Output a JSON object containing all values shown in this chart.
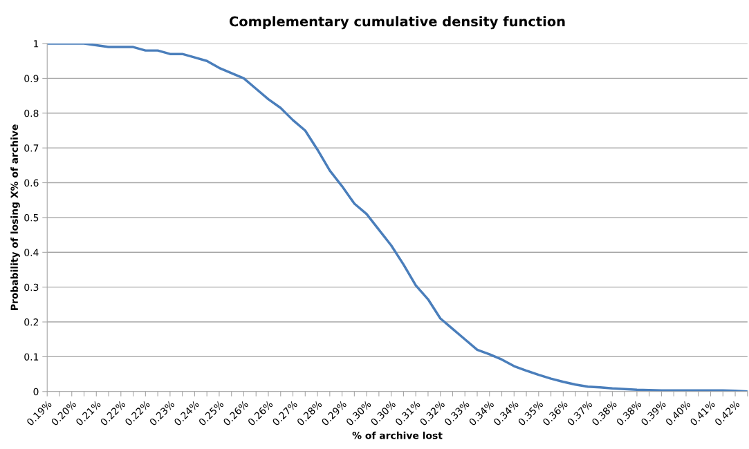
{
  "chart_data": {
    "type": "line",
    "title": "Complementary cumulative density function",
    "xlabel": "% of archive lost",
    "ylabel": "Probability of losing X% of archive",
    "categories": [
      "0.19%",
      null,
      "0.20%",
      null,
      "0.21%",
      null,
      "0.22%",
      null,
      "0.22%",
      null,
      "0.23%",
      null,
      "0.24%",
      null,
      "0.25%",
      null,
      "0.26%",
      null,
      "0.26%",
      null,
      "0.27%",
      null,
      "0.28%",
      null,
      "0.29%",
      null,
      "0.30%",
      null,
      "0.30%",
      null,
      "0.31%",
      null,
      "0.32%",
      null,
      "0.33%",
      null,
      "0.34%",
      null,
      "0.34%",
      null,
      "0.35%",
      null,
      "0.36%",
      null,
      "0.37%",
      null,
      "0.38%",
      null,
      "0.38%",
      null,
      "0.39%",
      null,
      "0.40%",
      null,
      "0.41%",
      null,
      "0.42%",
      null
    ],
    "series": [
      {
        "color": "#4a7ebb",
        "values": [
          1.0,
          1.0,
          1.0,
          1.0,
          0.995,
          0.99,
          0.99,
          0.99,
          0.98,
          0.98,
          0.97,
          0.97,
          0.96,
          0.95,
          0.93,
          0.915,
          0.9,
          0.87,
          0.84,
          0.815,
          0.78,
          0.75,
          0.695,
          0.635,
          0.59,
          0.54,
          0.51,
          0.465,
          0.42,
          0.365,
          0.305,
          0.265,
          0.21,
          0.18,
          0.15,
          0.12,
          0.107,
          0.092,
          0.073,
          0.06,
          0.048,
          0.037,
          0.028,
          0.02,
          0.014,
          0.012,
          0.009,
          0.007,
          0.005,
          0.004,
          0.003,
          0.003,
          0.003,
          0.003,
          0.003,
          0.003,
          0.002,
          0.0
        ]
      }
    ],
    "ylim": [
      0,
      1
    ],
    "yticks": [
      0,
      0.1,
      0.2,
      0.3,
      0.4,
      0.5,
      0.6,
      0.7,
      0.8,
      0.9,
      1
    ],
    "grid": "y",
    "marker": "none",
    "line_style": "solid"
  }
}
